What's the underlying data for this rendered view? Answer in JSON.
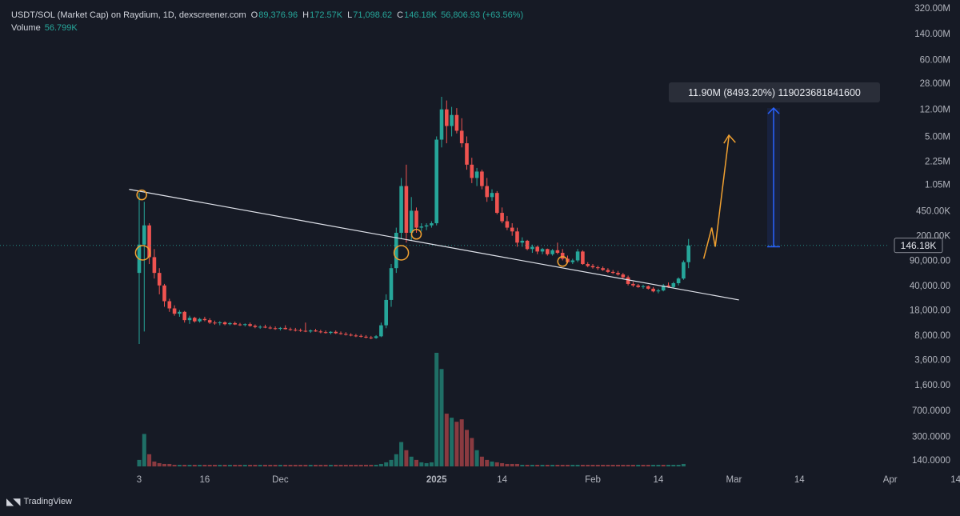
{
  "legend": {
    "title": "USDT/SOL (Market Cap) on Raydium, 1D, dexscreener.com",
    "open_key": "O",
    "open": "89,376.96",
    "high_key": "H",
    "high": "172.57K",
    "low_key": "L",
    "low": "71,098.62",
    "close_key": "C",
    "close": "146.18K",
    "change": "56,806.93 (+63.56%)",
    "volume_label": "Volume",
    "volume_value": "56.799K"
  },
  "measure_label": "11.90M (8493.20%) 119023681841600",
  "price_tag": "146.18K",
  "branding": {
    "name": "TradingView"
  },
  "colors": {
    "up": "#26a69a",
    "down": "#ef5350",
    "up_vol": "#1f6f66",
    "down_vol": "#8a3a40",
    "trendline": "#e0e3eb",
    "projection": "#f0a030",
    "measure": "#2962ff",
    "marker": "#f0a030",
    "price_line": "#26a69a"
  },
  "chart_data": {
    "type": "candlestick",
    "scale": "log",
    "y_ticks": [
      {
        "label": "320.00M",
        "value": 320000000
      },
      {
        "label": "140.00M",
        "value": 140000000
      },
      {
        "label": "60.00M",
        "value": 60000000
      },
      {
        "label": "28.00M",
        "value": 28000000
      },
      {
        "label": "12.00M",
        "value": 12000000
      },
      {
        "label": "5.00M",
        "value": 5000000
      },
      {
        "label": "2.25M",
        "value": 2250000
      },
      {
        "label": "1.05M",
        "value": 1050000
      },
      {
        "label": "450.00K",
        "value": 450000
      },
      {
        "label": "200.00K",
        "value": 200000
      },
      {
        "label": "90,000.00",
        "value": 90000
      },
      {
        "label": "40,000.00",
        "value": 40000
      },
      {
        "label": "18,000.00",
        "value": 18000
      },
      {
        "label": "8,000.00",
        "value": 8000
      },
      {
        "label": "3,600.00",
        "value": 3600
      },
      {
        "label": "1,600.00",
        "value": 1600
      },
      {
        "label": "700.0000",
        "value": 700
      },
      {
        "label": "300.0000",
        "value": 300
      },
      {
        "label": "140.0000",
        "value": 140
      }
    ],
    "x_ticks": [
      {
        "label": "3",
        "index": 0,
        "bold": false
      },
      {
        "label": "16",
        "index": 13,
        "bold": false
      },
      {
        "label": "Dec",
        "index": 28,
        "bold": false
      },
      {
        "label": "2025",
        "index": 59,
        "bold": true
      },
      {
        "label": "14",
        "index": 72,
        "bold": false
      },
      {
        "label": "Feb",
        "index": 90,
        "bold": false
      },
      {
        "label": "14",
        "index": 103,
        "bold": false
      },
      {
        "label": "Mar",
        "index": 118,
        "bold": false
      },
      {
        "label": "14",
        "index": 131,
        "bold": false
      },
      {
        "label": "Apr",
        "index": 149,
        "bold": false
      },
      {
        "label": "14",
        "index": 162,
        "bold": false
      }
    ],
    "ohlc": [
      [
        60000,
        800000,
        6000,
        150000,
        "up"
      ],
      [
        150000,
        600000,
        9000,
        280000,
        "up"
      ],
      [
        280000,
        300000,
        80000,
        100000,
        "down"
      ],
      [
        100000,
        130000,
        50000,
        60000,
        "down"
      ],
      [
        60000,
        70000,
        30000,
        40000,
        "down"
      ],
      [
        40000,
        42000,
        20000,
        24000,
        "down"
      ],
      [
        24000,
        26000,
        17000,
        19000,
        "down"
      ],
      [
        19000,
        21000,
        15000,
        16000,
        "down"
      ],
      [
        16000,
        18000,
        14500,
        17000,
        "up"
      ],
      [
        17000,
        17500,
        12000,
        13000,
        "down"
      ],
      [
        13000,
        15000,
        11500,
        14000,
        "up"
      ],
      [
        14000,
        14500,
        12000,
        12500,
        "down"
      ],
      [
        12500,
        14000,
        12000,
        13500,
        "up"
      ],
      [
        13500,
        14500,
        12500,
        13000,
        "down"
      ],
      [
        13000,
        13800,
        11500,
        12000,
        "down"
      ],
      [
        12000,
        12800,
        11200,
        11800,
        "down"
      ],
      [
        11800,
        12600,
        11000,
        12100,
        "up"
      ],
      [
        12100,
        12500,
        11000,
        11400,
        "down"
      ],
      [
        11400,
        12200,
        11000,
        11800,
        "up"
      ],
      [
        11800,
        12400,
        11100,
        11300,
        "down"
      ],
      [
        11300,
        11900,
        10800,
        11100,
        "down"
      ],
      [
        11100,
        11700,
        10600,
        11400,
        "up"
      ],
      [
        11400,
        12000,
        10500,
        10800,
        "down"
      ],
      [
        10800,
        11300,
        10000,
        10400,
        "down"
      ],
      [
        10400,
        11000,
        9800,
        10500,
        "up"
      ],
      [
        10500,
        11200,
        10000,
        10200,
        "down"
      ],
      [
        10200,
        10800,
        9700,
        10000,
        "down"
      ],
      [
        10000,
        10600,
        9500,
        9800,
        "down"
      ],
      [
        9800,
        10400,
        9300,
        10100,
        "up"
      ],
      [
        10100,
        11000,
        9600,
        9700,
        "down"
      ],
      [
        9700,
        10200,
        9200,
        9500,
        "down"
      ],
      [
        9500,
        10100,
        9000,
        9400,
        "down"
      ],
      [
        9400,
        9900,
        8900,
        9200,
        "down"
      ],
      [
        9200,
        12000,
        8800,
        9000,
        "down"
      ],
      [
        9000,
        9600,
        8600,
        9300,
        "up"
      ],
      [
        9300,
        9800,
        8900,
        9000,
        "down"
      ],
      [
        9000,
        9500,
        8500,
        8800,
        "down"
      ],
      [
        8800,
        9300,
        8400,
        8600,
        "down"
      ],
      [
        8600,
        9100,
        8200,
        8900,
        "up"
      ],
      [
        8900,
        9300,
        8300,
        8500,
        "down"
      ],
      [
        8500,
        9000,
        8100,
        8300,
        "down"
      ],
      [
        8300,
        8800,
        7900,
        8100,
        "down"
      ],
      [
        8100,
        8500,
        7700,
        7900,
        "down"
      ],
      [
        7900,
        8300,
        7500,
        7800,
        "down"
      ],
      [
        7800,
        8200,
        7400,
        7600,
        "down"
      ],
      [
        7600,
        8000,
        7200,
        7400,
        "down"
      ],
      [
        7400,
        7800,
        7000,
        7300,
        "down"
      ],
      [
        7300,
        8000,
        7100,
        7700,
        "up"
      ],
      [
        7700,
        12000,
        7500,
        11000,
        "up"
      ],
      [
        11000,
        30000,
        10000,
        25000,
        "up"
      ],
      [
        25000,
        80000,
        20000,
        70000,
        "up"
      ],
      [
        70000,
        260000,
        60000,
        220000,
        "up"
      ],
      [
        220000,
        1300000,
        180000,
        1000000,
        "up"
      ],
      [
        1000000,
        2000000,
        160000,
        220000,
        "down"
      ],
      [
        220000,
        700000,
        170000,
        450000,
        "up"
      ],
      [
        450000,
        500000,
        220000,
        260000,
        "down"
      ],
      [
        260000,
        300000,
        230000,
        270000,
        "up"
      ],
      [
        270000,
        300000,
        240000,
        280000,
        "up"
      ],
      [
        280000,
        320000,
        260000,
        300000,
        "up"
      ],
      [
        300000,
        5000000,
        280000,
        4500000,
        "up"
      ],
      [
        4500000,
        18000000,
        3500000,
        12000000,
        "up"
      ],
      [
        12000000,
        16000000,
        4000000,
        7000000,
        "down"
      ],
      [
        7000000,
        13000000,
        5000000,
        10000000,
        "up"
      ],
      [
        10000000,
        12500000,
        5500000,
        6000000,
        "down"
      ],
      [
        6000000,
        9000000,
        3500000,
        4000000,
        "down"
      ],
      [
        4000000,
        5000000,
        1700000,
        2000000,
        "down"
      ],
      [
        2000000,
        2500000,
        1100000,
        1300000,
        "down"
      ],
      [
        1300000,
        1800000,
        1000000,
        1600000,
        "up"
      ],
      [
        1600000,
        1700000,
        900000,
        1000000,
        "down"
      ],
      [
        1000000,
        1300000,
        600000,
        700000,
        "down"
      ],
      [
        700000,
        900000,
        620000,
        800000,
        "up"
      ],
      [
        800000,
        850000,
        400000,
        420000,
        "down"
      ],
      [
        420000,
        500000,
        300000,
        320000,
        "down"
      ],
      [
        320000,
        380000,
        240000,
        260000,
        "down"
      ],
      [
        260000,
        300000,
        200000,
        230000,
        "down"
      ],
      [
        230000,
        260000,
        140000,
        160000,
        "down"
      ],
      [
        160000,
        190000,
        140000,
        170000,
        "up"
      ],
      [
        170000,
        175000,
        125000,
        130000,
        "down"
      ],
      [
        130000,
        150000,
        115000,
        140000,
        "up"
      ],
      [
        140000,
        145000,
        110000,
        120000,
        "down"
      ],
      [
        120000,
        135000,
        110000,
        130000,
        "up"
      ],
      [
        130000,
        132000,
        105000,
        110000,
        "down"
      ],
      [
        110000,
        130000,
        105000,
        125000,
        "up"
      ],
      [
        125000,
        160000,
        110000,
        115000,
        "down"
      ],
      [
        115000,
        130000,
        90000,
        95000,
        "down"
      ],
      [
        95000,
        105000,
        82000,
        85000,
        "down"
      ],
      [
        85000,
        95000,
        80000,
        90000,
        "up"
      ],
      [
        90000,
        130000,
        85000,
        120000,
        "up"
      ],
      [
        120000,
        125000,
        78000,
        80000,
        "down"
      ],
      [
        80000,
        85000,
        72000,
        75000,
        "down"
      ],
      [
        75000,
        80000,
        69000,
        72000,
        "down"
      ],
      [
        72000,
        76000,
        66000,
        70000,
        "down"
      ],
      [
        70000,
        74000,
        64000,
        66000,
        "down"
      ],
      [
        66000,
        70000,
        60000,
        62000,
        "down"
      ],
      [
        62000,
        66000,
        58000,
        60000,
        "down"
      ],
      [
        60000,
        64000,
        55000,
        57000,
        "down"
      ],
      [
        57000,
        60000,
        50000,
        52000,
        "down"
      ],
      [
        52000,
        55000,
        40000,
        42000,
        "down"
      ],
      [
        42000,
        45000,
        38000,
        40000,
        "down"
      ],
      [
        40000,
        42000,
        37000,
        38000,
        "down"
      ],
      [
        38000,
        41000,
        36000,
        39000,
        "up"
      ],
      [
        39000,
        40000,
        35000,
        36000,
        "down"
      ],
      [
        36000,
        38000,
        32000,
        33000,
        "down"
      ],
      [
        33000,
        36000,
        31000,
        34000,
        "up"
      ],
      [
        34000,
        42000,
        33000,
        40000,
        "up"
      ],
      [
        40000,
        44000,
        37000,
        38000,
        "down"
      ],
      [
        38000,
        45000,
        37000,
        43000,
        "up"
      ],
      [
        43000,
        52000,
        40000,
        50000,
        "up"
      ],
      [
        50000,
        90000,
        48000,
        85000,
        "up"
      ],
      [
        85000,
        180000,
        70000,
        146180,
        "up"
      ]
    ],
    "volume": [
      [
        8,
        "up"
      ],
      [
        40,
        "up"
      ],
      [
        15,
        "down"
      ],
      [
        6,
        "down"
      ],
      [
        4,
        "down"
      ],
      [
        3,
        "down"
      ],
      [
        3,
        "down"
      ],
      [
        2,
        "down"
      ],
      [
        2,
        "up"
      ],
      [
        2,
        "down"
      ],
      [
        2,
        "up"
      ],
      [
        2,
        "down"
      ],
      [
        2,
        "up"
      ],
      [
        2,
        "down"
      ],
      [
        2,
        "down"
      ],
      [
        2,
        "down"
      ],
      [
        2,
        "up"
      ],
      [
        2,
        "down"
      ],
      [
        2,
        "up"
      ],
      [
        2,
        "down"
      ],
      [
        2,
        "down"
      ],
      [
        2,
        "up"
      ],
      [
        2,
        "down"
      ],
      [
        2,
        "down"
      ],
      [
        2,
        "up"
      ],
      [
        2,
        "down"
      ],
      [
        2,
        "down"
      ],
      [
        2,
        "down"
      ],
      [
        2,
        "up"
      ],
      [
        2,
        "down"
      ],
      [
        2,
        "down"
      ],
      [
        2,
        "down"
      ],
      [
        2,
        "down"
      ],
      [
        2,
        "down"
      ],
      [
        2,
        "up"
      ],
      [
        2,
        "down"
      ],
      [
        2,
        "down"
      ],
      [
        2,
        "down"
      ],
      [
        2,
        "up"
      ],
      [
        2,
        "down"
      ],
      [
        2,
        "down"
      ],
      [
        2,
        "down"
      ],
      [
        2,
        "down"
      ],
      [
        2,
        "down"
      ],
      [
        2,
        "down"
      ],
      [
        2,
        "down"
      ],
      [
        2,
        "down"
      ],
      [
        2,
        "up"
      ],
      [
        3,
        "up"
      ],
      [
        5,
        "up"
      ],
      [
        8,
        "up"
      ],
      [
        15,
        "up"
      ],
      [
        30,
        "up"
      ],
      [
        20,
        "down"
      ],
      [
        12,
        "up"
      ],
      [
        8,
        "down"
      ],
      [
        5,
        "up"
      ],
      [
        4,
        "up"
      ],
      [
        5,
        "up"
      ],
      [
        140,
        "up"
      ],
      [
        120,
        "up"
      ],
      [
        65,
        "down"
      ],
      [
        60,
        "up"
      ],
      [
        55,
        "down"
      ],
      [
        58,
        "down"
      ],
      [
        45,
        "down"
      ],
      [
        35,
        "down"
      ],
      [
        20,
        "up"
      ],
      [
        12,
        "down"
      ],
      [
        8,
        "down"
      ],
      [
        6,
        "up"
      ],
      [
        5,
        "down"
      ],
      [
        4,
        "down"
      ],
      [
        3,
        "down"
      ],
      [
        3,
        "down"
      ],
      [
        3,
        "down"
      ],
      [
        2,
        "up"
      ],
      [
        2,
        "down"
      ],
      [
        2,
        "up"
      ],
      [
        2,
        "down"
      ],
      [
        2,
        "up"
      ],
      [
        2,
        "down"
      ],
      [
        2,
        "up"
      ],
      [
        2,
        "down"
      ],
      [
        2,
        "down"
      ],
      [
        2,
        "down"
      ],
      [
        2,
        "up"
      ],
      [
        2,
        "up"
      ],
      [
        2,
        "down"
      ],
      [
        2,
        "down"
      ],
      [
        2,
        "down"
      ],
      [
        2,
        "down"
      ],
      [
        2,
        "down"
      ],
      [
        2,
        "down"
      ],
      [
        2,
        "down"
      ],
      [
        2,
        "down"
      ],
      [
        2,
        "down"
      ],
      [
        2,
        "down"
      ],
      [
        2,
        "down"
      ],
      [
        2,
        "up"
      ],
      [
        2,
        "down"
      ],
      [
        2,
        "down"
      ],
      [
        2,
        "up"
      ],
      [
        2,
        "up"
      ],
      [
        2,
        "down"
      ],
      [
        2,
        "up"
      ],
      [
        2,
        "up"
      ],
      [
        2,
        "up"
      ],
      [
        3,
        "up"
      ]
    ]
  }
}
